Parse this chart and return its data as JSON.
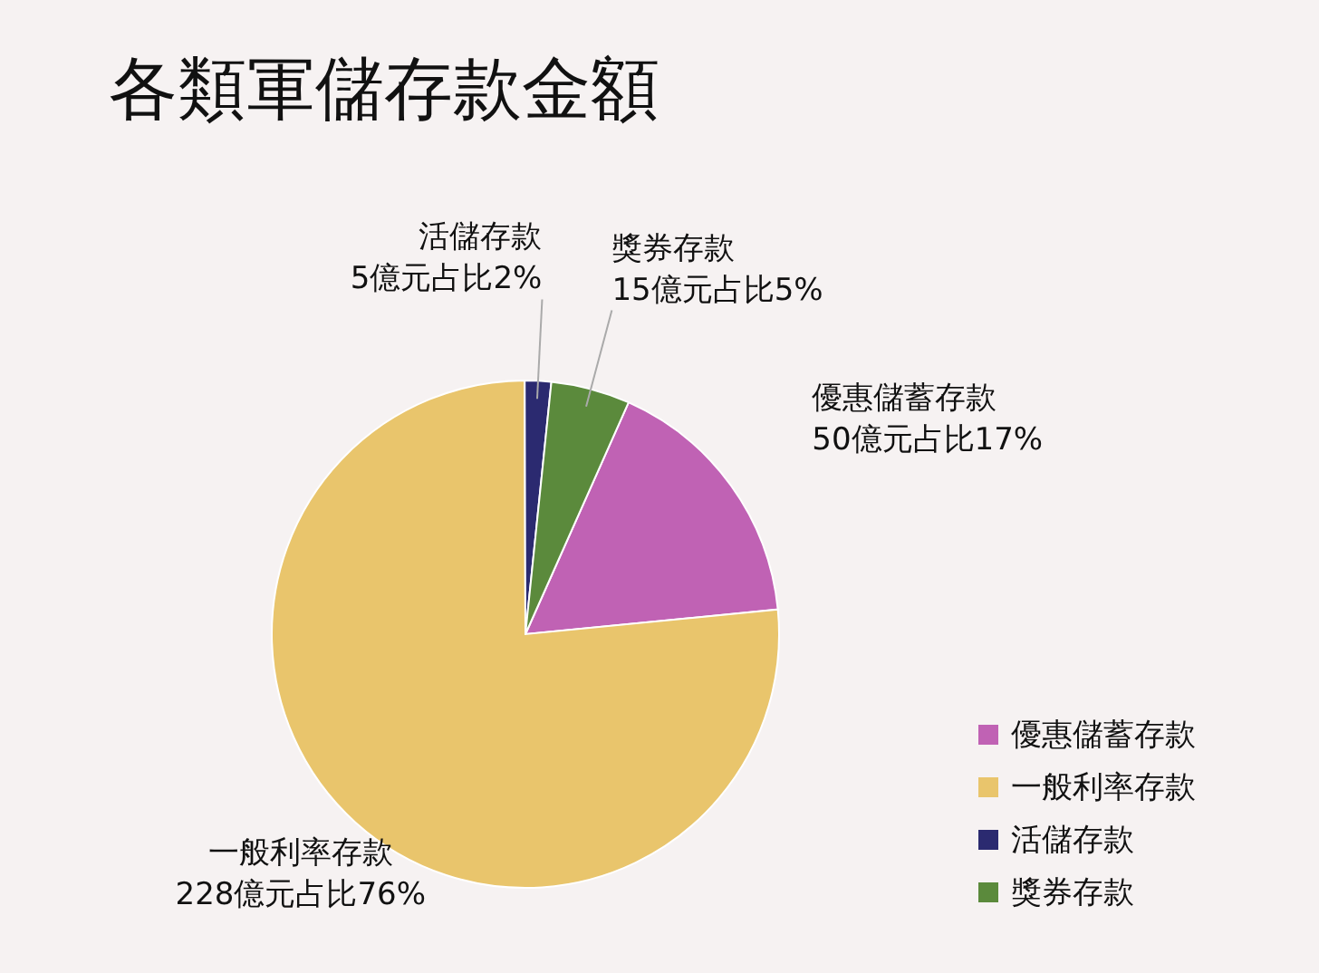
{
  "chart_data": {
    "type": "pie",
    "title": "各類軍儲存款金額",
    "categories": [
      "優惠儲蓄存款",
      "一般利率存款",
      "活儲存款",
      "獎券存款"
    ],
    "values": [
      50,
      228,
      5,
      15
    ],
    "colors": [
      "#c062b4",
      "#e9c56c",
      "#2b2a70",
      "#5b8a3c"
    ],
    "value_labels": [
      "50億元占比17%",
      "228億元占比76%",
      "5億元占比2%",
      "15億元占比5%"
    ],
    "legend": "bottom right"
  }
}
